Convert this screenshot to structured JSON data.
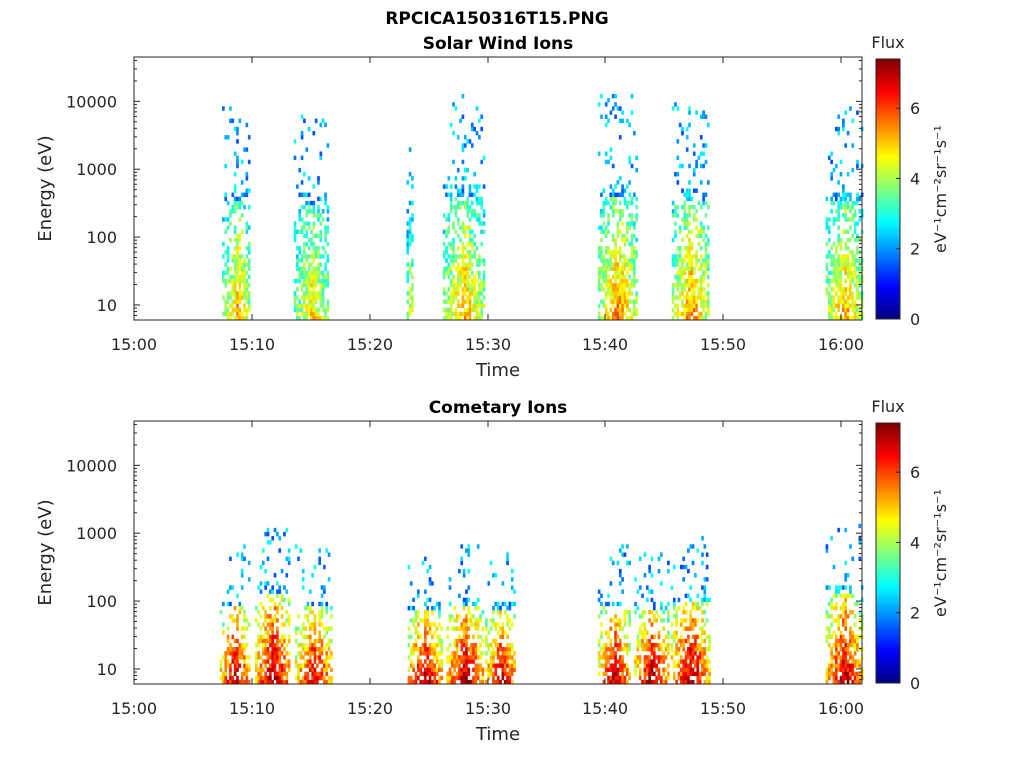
{
  "figure_title": "RPCICA150316T15.PNG",
  "chart_data": [
    {
      "type": "heatmap",
      "title": "Solar Wind Ions",
      "xlabel": "Time",
      "ylabel": "Energy (eV)",
      "yscale": "log",
      "xlim_minutes_after_15": [
        0,
        62
      ],
      "ylim": [
        6,
        45000
      ],
      "xticks": [
        "15:00",
        "15:10",
        "15:20",
        "15:30",
        "15:40",
        "15:50",
        "16:00"
      ],
      "yticks": [
        {
          "value": 10,
          "label": "10"
        },
        {
          "value": 100,
          "label": "100"
        },
        {
          "value": 1000,
          "label": "1000"
        },
        {
          "value": 10000,
          "label": "10000"
        }
      ],
      "colorbar": {
        "title": "Flux",
        "units": "eV⁻¹cm⁻²sr⁻¹s⁻¹",
        "range": [
          0,
          7.4
        ],
        "ticks": [
          0,
          2,
          4,
          6
        ]
      },
      "bursts": [
        {
          "t": [
            7.5,
            9.9
          ],
          "low_e_peak_flux": 5.2,
          "max_energy": 8000
        },
        {
          "t": [
            13.6,
            16.6
          ],
          "low_e_peak_flux": 5.0,
          "max_energy": 7000
        },
        {
          "t": [
            23.2,
            23.8
          ],
          "low_e_peak_flux": 4.6,
          "max_energy": 3000
        },
        {
          "t": [
            26.3,
            29.8
          ],
          "low_e_peak_flux": 5.3,
          "max_energy": 12000
        },
        {
          "t": [
            39.5,
            42.8
          ],
          "low_e_peak_flux": 5.6,
          "max_energy": 12000
        },
        {
          "t": [
            45.8,
            49.0
          ],
          "low_e_peak_flux": 5.6,
          "max_energy": 9000
        },
        {
          "t": [
            58.9,
            62.0
          ],
          "low_e_peak_flux": 5.4,
          "max_energy": 8000
        }
      ]
    },
    {
      "type": "heatmap",
      "title": "Cometary Ions",
      "xlabel": "Time",
      "ylabel": "Energy (eV)",
      "yscale": "log",
      "xlim_minutes_after_15": [
        0,
        62
      ],
      "ylim": [
        6,
        45000
      ],
      "xticks": [
        "15:00",
        "15:10",
        "15:20",
        "15:30",
        "15:40",
        "15:50",
        "16:00"
      ],
      "yticks": [
        {
          "value": 10,
          "label": "10"
        },
        {
          "value": 100,
          "label": "100"
        },
        {
          "value": 1000,
          "label": "1000"
        },
        {
          "value": 10000,
          "label": "10000"
        }
      ],
      "colorbar": {
        "title": "Flux",
        "units": "eV⁻¹cm⁻²sr⁻¹s⁻¹",
        "range": [
          0,
          7.4
        ],
        "ticks": [
          0,
          2,
          4,
          6
        ]
      },
      "bursts": [
        {
          "t": [
            7.3,
            9.8
          ],
          "low_e_peak_flux": 7.2,
          "max_energy": 600
        },
        {
          "t": [
            10.3,
            13.3
          ],
          "low_e_peak_flux": 7.3,
          "max_energy": 1500
        },
        {
          "t": [
            13.7,
            16.9
          ],
          "low_e_peak_flux": 7.0,
          "max_energy": 600
        },
        {
          "t": [
            23.3,
            26.2
          ],
          "low_e_peak_flux": 7.3,
          "max_energy": 500
        },
        {
          "t": [
            26.6,
            29.8
          ],
          "low_e_peak_flux": 7.3,
          "max_energy": 600
        },
        {
          "t": [
            29.9,
            32.5
          ],
          "low_e_peak_flux": 7.2,
          "max_energy": 500
        },
        {
          "t": [
            39.5,
            42.2
          ],
          "low_e_peak_flux": 7.2,
          "max_energy": 600
        },
        {
          "t": [
            42.6,
            45.5
          ],
          "low_e_peak_flux": 7.3,
          "max_energy": 500
        },
        {
          "t": [
            45.7,
            49.0
          ],
          "low_e_peak_flux": 7.3,
          "max_energy": 900
        },
        {
          "t": [
            58.9,
            62.0
          ],
          "low_e_peak_flux": 7.2,
          "max_energy": 1300
        }
      ]
    }
  ]
}
